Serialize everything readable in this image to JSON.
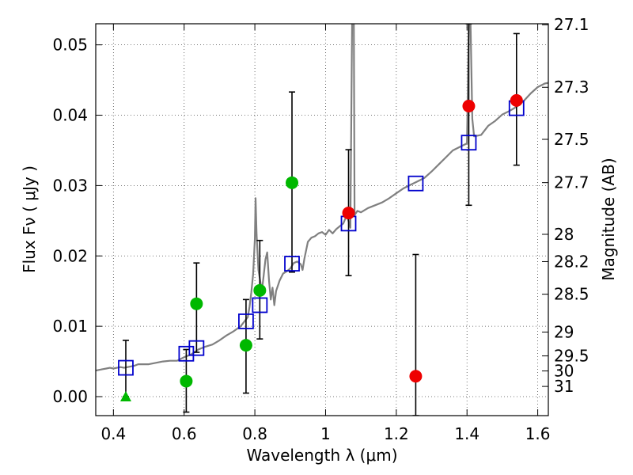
{
  "chart_data": {
    "type": "scatter",
    "xlabel": "Wavelength  λ (μm)",
    "ylabel_left": "Flux  Fν  ( μJy )",
    "ylabel_right": "Magnitude (AB)",
    "xlim": [
      0.35,
      1.63
    ],
    "ylim": [
      -0.0027,
      0.053
    ],
    "grid": true,
    "x_ticks": [
      0.4,
      0.6,
      0.8,
      1.0,
      1.2,
      1.4,
      1.6
    ],
    "x_tick_labels": [
      "0.4",
      "0.6",
      "0.8",
      "1",
      "1.2",
      "1.4",
      "1.6"
    ],
    "y_ticks": [
      0.0,
      0.01,
      0.02,
      0.03,
      0.04,
      0.05
    ],
    "y_tick_labels": [
      "0.00",
      "0.01",
      "0.02",
      "0.03",
      "0.04",
      "0.05"
    ],
    "right_ticks": [
      {
        "label": "27.1",
        "flux": 0.05286
      },
      {
        "label": "27.3",
        "flux": 0.04397
      },
      {
        "label": "27.5",
        "flux": 0.03657
      },
      {
        "label": "27.7",
        "flux": 0.03042
      },
      {
        "label": "28",
        "flux": 0.02307
      },
      {
        "label": "28.2",
        "flux": 0.01919
      },
      {
        "label": "28.5",
        "flux": 0.01456
      },
      {
        "label": "29",
        "flux": 0.00918
      },
      {
        "label": "29.5",
        "flux": 0.00579
      },
      {
        "label": "30",
        "flux": 0.00365
      },
      {
        "label": "31",
        "flux": 0.00145
      }
    ],
    "colors": {
      "model": "#808080",
      "model_photometry": "#0000cc",
      "green": "#00b800",
      "red": "#ee0000",
      "errorbar": "#000000"
    },
    "series": [
      {
        "kind": "model-spectrum",
        "points": [
          [
            0.35,
            0.0037
          ],
          [
            0.36,
            0.0038
          ],
          [
            0.37,
            0.0039
          ],
          [
            0.38,
            0.004
          ],
          [
            0.39,
            0.0041
          ],
          [
            0.4,
            0.004
          ],
          [
            0.41,
            0.0041
          ],
          [
            0.42,
            0.0042
          ],
          [
            0.43,
            0.0041
          ],
          [
            0.44,
            0.0042
          ],
          [
            0.45,
            0.0043
          ],
          [
            0.46,
            0.0044
          ],
          [
            0.47,
            0.0046
          ],
          [
            0.48,
            0.0046
          ],
          [
            0.5,
            0.0046
          ],
          [
            0.52,
            0.0048
          ],
          [
            0.54,
            0.005
          ],
          [
            0.56,
            0.0051
          ],
          [
            0.58,
            0.0051
          ],
          [
            0.6,
            0.0056
          ],
          [
            0.62,
            0.006
          ],
          [
            0.64,
            0.0067
          ],
          [
            0.66,
            0.0071
          ],
          [
            0.68,
            0.0074
          ],
          [
            0.7,
            0.008
          ],
          [
            0.72,
            0.0087
          ],
          [
            0.74,
            0.0093
          ],
          [
            0.76,
            0.01
          ],
          [
            0.78,
            0.0113
          ],
          [
            0.785,
            0.0128
          ],
          [
            0.79,
            0.0148
          ],
          [
            0.795,
            0.0174
          ],
          [
            0.8,
            0.0224
          ],
          [
            0.802,
            0.0282
          ],
          [
            0.805,
            0.023
          ],
          [
            0.81,
            0.018
          ],
          [
            0.82,
            0.015
          ],
          [
            0.83,
            0.0195
          ],
          [
            0.835,
            0.0205
          ],
          [
            0.84,
            0.0165
          ],
          [
            0.845,
            0.0138
          ],
          [
            0.85,
            0.0155
          ],
          [
            0.855,
            0.013
          ],
          [
            0.86,
            0.015
          ],
          [
            0.87,
            0.0165
          ],
          [
            0.88,
            0.0175
          ],
          [
            0.89,
            0.0178
          ],
          [
            0.9,
            0.0182
          ],
          [
            0.91,
            0.019
          ],
          [
            0.92,
            0.0192
          ],
          [
            0.93,
            0.0188
          ],
          [
            0.935,
            0.018
          ],
          [
            0.94,
            0.0196
          ],
          [
            0.95,
            0.022
          ],
          [
            0.96,
            0.0226
          ],
          [
            0.97,
            0.0228
          ],
          [
            0.98,
            0.0232
          ],
          [
            0.99,
            0.0234
          ],
          [
            1.0,
            0.023
          ],
          [
            1.01,
            0.0237
          ],
          [
            1.02,
            0.0232
          ],
          [
            1.03,
            0.0238
          ],
          [
            1.04,
            0.0242
          ],
          [
            1.05,
            0.0246
          ],
          [
            1.06,
            0.0258
          ],
          [
            1.07,
            0.024
          ],
          [
            1.075,
            0.053
          ],
          [
            1.08,
            0.053
          ],
          [
            1.082,
            0.0258
          ],
          [
            1.09,
            0.0264
          ],
          [
            1.1,
            0.0262
          ],
          [
            1.12,
            0.0268
          ],
          [
            1.14,
            0.0272
          ],
          [
            1.16,
            0.0276
          ],
          [
            1.18,
            0.0282
          ],
          [
            1.2,
            0.0289
          ],
          [
            1.22,
            0.0296
          ],
          [
            1.24,
            0.0301
          ],
          [
            1.26,
            0.0306
          ],
          [
            1.28,
            0.0311
          ],
          [
            1.3,
            0.032
          ],
          [
            1.32,
            0.033
          ],
          [
            1.34,
            0.034
          ],
          [
            1.36,
            0.035
          ],
          [
            1.38,
            0.0355
          ],
          [
            1.4,
            0.036
          ],
          [
            1.405,
            0.053
          ],
          [
            1.41,
            0.053
          ],
          [
            1.415,
            0.0395
          ],
          [
            1.42,
            0.037
          ],
          [
            1.44,
            0.0372
          ],
          [
            1.46,
            0.0385
          ],
          [
            1.48,
            0.0392
          ],
          [
            1.5,
            0.0401
          ],
          [
            1.52,
            0.0406
          ],
          [
            1.54,
            0.0412
          ],
          [
            1.56,
            0.042
          ],
          [
            1.58,
            0.0431
          ],
          [
            1.6,
            0.044
          ],
          [
            1.62,
            0.0445
          ],
          [
            1.63,
            0.0446
          ]
        ]
      },
      {
        "kind": "model-photometry",
        "x": [
          0.435,
          0.606,
          0.635,
          0.775,
          0.814,
          0.905,
          1.065,
          1.255,
          1.405,
          1.54
        ],
        "y": [
          0.0041,
          0.0061,
          0.0069,
          0.0107,
          0.013,
          0.0189,
          0.0246,
          0.0303,
          0.0361,
          0.041
        ]
      },
      {
        "kind": "observed-green",
        "x": [
          0.606,
          0.635,
          0.775,
          0.814,
          0.905
        ],
        "y": [
          0.0022,
          0.0132,
          0.0073,
          0.0151,
          0.0304
        ],
        "yerr_low": [
          -0.0022,
          0.0063,
          0.0005,
          0.0082,
          0.0177
        ],
        "yerr_high": [
          0.0067,
          0.019,
          0.0138,
          0.0222,
          0.0433
        ]
      },
      {
        "kind": "observed-red",
        "x": [
          1.065,
          1.255,
          1.405,
          1.54
        ],
        "y": [
          0.0261,
          0.0029,
          0.0413,
          0.0421
        ],
        "yerr_low": [
          0.0172,
          -0.0027,
          0.0272,
          0.0329
        ],
        "yerr_high": [
          0.0351,
          0.0202,
          0.053,
          0.0516
        ]
      },
      {
        "kind": "upper-limit-green-triangle",
        "x": [
          0.435
        ],
        "y": [
          0.0
        ],
        "yerr_high": [
          0.008
        ]
      }
    ]
  }
}
